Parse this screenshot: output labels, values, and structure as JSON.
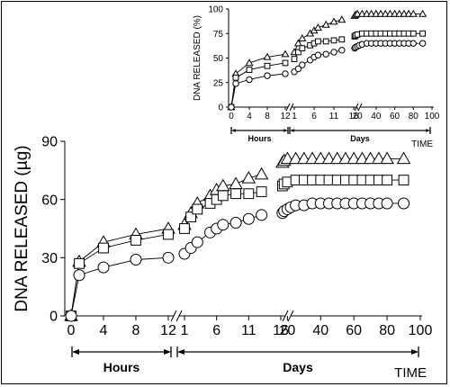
{
  "chart_data": [
    {
      "id": "main",
      "type": "line",
      "ylabel": "DNA RELEASED (µg)",
      "xlabel": "TIME",
      "ylim": [
        0,
        90
      ],
      "yticks": [
        0,
        30,
        60,
        90
      ],
      "segments": [
        {
          "label": "Hours",
          "xlim": [
            0,
            12
          ],
          "ticks": [
            0,
            4,
            8,
            12
          ]
        },
        {
          "label": "Days",
          "subsegments": [
            {
              "xlim": [
                1,
                16
              ],
              "ticks": [
                1,
                6,
                11,
                16
              ]
            },
            {
              "xlim": [
                16,
                100
              ],
              "ticks": [
                20,
                40,
                60,
                80,
                100
              ]
            }
          ]
        }
      ],
      "series": [
        {
          "marker": "triangle",
          "hours": [
            [
              0,
              0
            ],
            [
              1,
              28
            ],
            [
              4,
              38
            ],
            [
              8,
              42
            ],
            [
              12,
              45
            ]
          ],
          "days": [
            [
              1,
              47
            ],
            [
              2,
              53
            ],
            [
              3,
              58
            ],
            [
              5,
              62
            ],
            [
              6,
              65
            ],
            [
              7,
              67
            ],
            [
              9,
              68
            ],
            [
              11,
              71
            ],
            [
              13,
              73
            ],
            [
              17,
              79
            ],
            [
              18,
              80
            ],
            [
              20,
              81
            ],
            [
              25,
              81
            ],
            [
              30,
              81
            ],
            [
              35,
              81
            ],
            [
              40,
              81
            ],
            [
              45,
              81
            ],
            [
              50,
              81
            ],
            [
              55,
              81
            ],
            [
              60,
              81
            ],
            [
              65,
              81
            ],
            [
              70,
              81
            ],
            [
              75,
              81
            ],
            [
              80,
              81
            ],
            [
              90,
              81
            ]
          ]
        },
        {
          "marker": "square",
          "hours": [
            [
              0,
              0
            ],
            [
              1,
              27
            ],
            [
              4,
              35
            ],
            [
              8,
              39
            ],
            [
              12,
              42
            ]
          ],
          "days": [
            [
              1,
              45
            ],
            [
              2,
              51
            ],
            [
              3,
              55
            ],
            [
              5,
              58
            ],
            [
              6,
              60
            ],
            [
              7,
              62
            ],
            [
              9,
              63
            ],
            [
              11,
              63
            ],
            [
              13,
              64
            ],
            [
              17,
              67
            ],
            [
              18,
              68
            ],
            [
              20,
              69
            ],
            [
              25,
              70
            ],
            [
              30,
              70
            ],
            [
              35,
              70
            ],
            [
              40,
              70
            ],
            [
              45,
              70
            ],
            [
              50,
              70
            ],
            [
              55,
              70
            ],
            [
              60,
              70
            ],
            [
              65,
              70
            ],
            [
              70,
              70
            ],
            [
              75,
              70
            ],
            [
              80,
              70
            ],
            [
              90,
              70
            ]
          ]
        },
        {
          "marker": "circle",
          "hours": [
            [
              0,
              0
            ],
            [
              1,
              21
            ],
            [
              4,
              25
            ],
            [
              8,
              29
            ],
            [
              12,
              30
            ]
          ],
          "days": [
            [
              1,
              32
            ],
            [
              2,
              35
            ],
            [
              3,
              38
            ],
            [
              5,
              43
            ],
            [
              6,
              45
            ],
            [
              7,
              47
            ],
            [
              9,
              48
            ],
            [
              11,
              50
            ],
            [
              13,
              52
            ],
            [
              17,
              53
            ],
            [
              18,
              54
            ],
            [
              20,
              55
            ],
            [
              22,
              56
            ],
            [
              25,
              57
            ],
            [
              30,
              57
            ],
            [
              35,
              58
            ],
            [
              40,
              58
            ],
            [
              45,
              58
            ],
            [
              50,
              58
            ],
            [
              55,
              58
            ],
            [
              60,
              58
            ],
            [
              65,
              58
            ],
            [
              70,
              58
            ],
            [
              75,
              58
            ],
            [
              80,
              58
            ],
            [
              90,
              58
            ]
          ]
        }
      ]
    },
    {
      "id": "inset",
      "type": "line",
      "ylabel": "DNA RELEASED (%)",
      "xlabel": "TIME",
      "ylim": [
        0,
        100
      ],
      "yticks": [
        0,
        25,
        50,
        75,
        100
      ],
      "segments": [
        {
          "label": "Hours",
          "xlim": [
            0,
            12
          ],
          "ticks": [
            0,
            4,
            8,
            12
          ]
        },
        {
          "label": "Days",
          "subsegments": [
            {
              "xlim": [
                1,
                16
              ],
              "ticks": [
                1,
                6,
                11,
                16
              ]
            },
            {
              "xlim": [
                16,
                100
              ],
              "ticks": [
                20,
                40,
                60,
                80,
                100
              ]
            }
          ]
        }
      ],
      "series": [
        {
          "marker": "triangle",
          "hours": [
            [
              0,
              0
            ],
            [
              1,
              34
            ],
            [
              4,
              45
            ],
            [
              8,
              51
            ],
            [
              12,
              54
            ]
          ],
          "days": [
            [
              1,
              56
            ],
            [
              2,
              65
            ],
            [
              3,
              70
            ],
            [
              5,
              75
            ],
            [
              6,
              78
            ],
            [
              7,
              81
            ],
            [
              9,
              84
            ],
            [
              11,
              87
            ],
            [
              13,
              89
            ],
            [
              17,
              93
            ],
            [
              18,
              94
            ],
            [
              20,
              95
            ],
            [
              25,
              95
            ],
            [
              30,
              95
            ],
            [
              35,
              95
            ],
            [
              40,
              95
            ],
            [
              45,
              95
            ],
            [
              50,
              95
            ],
            [
              55,
              95
            ],
            [
              60,
              95
            ],
            [
              65,
              95
            ],
            [
              70,
              95
            ],
            [
              75,
              95
            ],
            [
              80,
              95
            ],
            [
              90,
              95
            ]
          ]
        },
        {
          "marker": "square",
          "hours": [
            [
              0,
              0
            ],
            [
              1,
              30
            ],
            [
              4,
              38
            ],
            [
              8,
              42
            ],
            [
              12,
              45
            ]
          ],
          "days": [
            [
              1,
              49
            ],
            [
              2,
              56
            ],
            [
              3,
              60
            ],
            [
              5,
              63
            ],
            [
              6,
              65
            ],
            [
              7,
              67
            ],
            [
              9,
              67
            ],
            [
              11,
              68
            ],
            [
              13,
              69
            ],
            [
              17,
              72
            ],
            [
              18,
              73
            ],
            [
              20,
              74
            ],
            [
              25,
              75
            ],
            [
              30,
              75
            ],
            [
              35,
              75
            ],
            [
              40,
              75
            ],
            [
              45,
              75
            ],
            [
              50,
              75
            ],
            [
              55,
              75
            ],
            [
              60,
              75
            ],
            [
              65,
              75
            ],
            [
              70,
              75
            ],
            [
              75,
              75
            ],
            [
              80,
              75
            ],
            [
              90,
              75
            ]
          ]
        },
        {
          "marker": "circle",
          "hours": [
            [
              0,
              0
            ],
            [
              1,
              24
            ],
            [
              4,
              28
            ],
            [
              8,
              32
            ],
            [
              12,
              34
            ]
          ],
          "days": [
            [
              1,
              36
            ],
            [
              2,
              39
            ],
            [
              3,
              43
            ],
            [
              5,
              48
            ],
            [
              6,
              51
            ],
            [
              7,
              53
            ],
            [
              9,
              54
            ],
            [
              11,
              56
            ],
            [
              13,
              58
            ],
            [
              17,
              60
            ],
            [
              18,
              61
            ],
            [
              20,
              62
            ],
            [
              22,
              63
            ],
            [
              25,
              64
            ],
            [
              30,
              65
            ],
            [
              35,
              65
            ],
            [
              40,
              65
            ],
            [
              45,
              65
            ],
            [
              50,
              65
            ],
            [
              55,
              65
            ],
            [
              60,
              65
            ],
            [
              65,
              65
            ],
            [
              70,
              65
            ],
            [
              75,
              65
            ],
            [
              80,
              65
            ],
            [
              90,
              65
            ]
          ]
        }
      ]
    }
  ]
}
